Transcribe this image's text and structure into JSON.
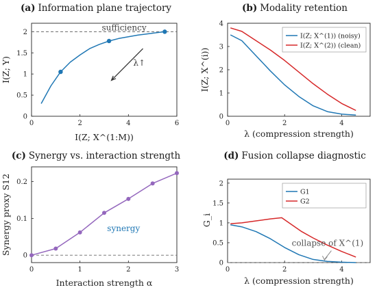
{
  "chart_data": [
    {
      "type": "line",
      "panel": "(a)",
      "title_label": "(a)",
      "title": "Information plane trajectory",
      "xlabel": "I(Z; X^(1:M))",
      "ylabel": "I(Z; Y)",
      "xlim": [
        0,
        6
      ],
      "ylim": [
        0,
        2.2
      ],
      "xticks": [
        "0",
        "2",
        "4",
        "6"
      ],
      "yticks": [
        "0",
        "0.5",
        "1",
        "1.5",
        "2"
      ],
      "grid": false,
      "series": [
        {
          "color": "#1f77b4",
          "x": [
            0.4,
            0.8,
            1.2,
            1.6,
            2.0,
            2.4,
            2.8,
            3.2,
            3.6,
            4.0,
            4.4,
            4.8,
            5.2,
            5.5
          ],
          "y": [
            0.3,
            0.72,
            1.05,
            1.28,
            1.45,
            1.6,
            1.7,
            1.78,
            1.84,
            1.88,
            1.92,
            1.95,
            1.98,
            2.0
          ],
          "markers_x": [
            1.2,
            3.2,
            5.5
          ],
          "markers_y": [
            1.05,
            1.78,
            2.0
          ]
        }
      ],
      "hline": {
        "y": 2.0,
        "style": "dashed",
        "label": "sufficiency"
      },
      "arrow": {
        "label": "λ↑",
        "from": [
          4.6,
          1.6
        ],
        "to": [
          3.3,
          0.85
        ]
      }
    },
    {
      "type": "line",
      "panel": "(b)",
      "title_label": "(b)",
      "title": "Modality retention",
      "xlabel": "λ (compression strength)",
      "ylabel": "I(Z; X^(i))",
      "xlim": [
        0,
        5
      ],
      "ylim": [
        0,
        4
      ],
      "xticks": [
        "0",
        "2",
        "4"
      ],
      "yticks": [
        "0",
        "1",
        "2",
        "3",
        "4"
      ],
      "legend_position": "top-right",
      "series": [
        {
          "name": "I(Z; X^(1)) (noisy)",
          "color": "#1f77b4",
          "x": [
            0.1,
            0.5,
            1.0,
            1.5,
            2.0,
            2.5,
            3.0,
            3.5,
            4.0,
            4.5
          ],
          "y": [
            3.5,
            3.25,
            2.6,
            1.95,
            1.35,
            0.85,
            0.45,
            0.2,
            0.09,
            0.05
          ]
        },
        {
          "name": "I(Z; X^(2)) (clean)",
          "color": "#d62728",
          "x": [
            0.1,
            0.5,
            1.0,
            1.5,
            2.0,
            2.5,
            3.0,
            3.5,
            4.0,
            4.5
          ],
          "y": [
            3.8,
            3.65,
            3.25,
            2.85,
            2.4,
            1.9,
            1.4,
            0.95,
            0.55,
            0.25
          ]
        }
      ]
    },
    {
      "type": "line",
      "panel": "(c)",
      "title_label": "(c)",
      "title": "Synergy vs. interaction strength",
      "xlabel": "Interaction strength α",
      "ylabel": "Synergy proxy S12",
      "xlim": [
        0,
        3
      ],
      "ylim": [
        -0.02,
        0.24
      ],
      "xticks": [
        "0",
        "1",
        "2",
        "3"
      ],
      "yticks": [
        "0",
        "0.1",
        "0.2"
      ],
      "series": [
        {
          "color": "#9467bd",
          "x": [
            0,
            0.5,
            1.0,
            1.5,
            2.0,
            2.5,
            3.0
          ],
          "y": [
            0.0,
            0.018,
            0.062,
            0.115,
            0.153,
            0.195,
            0.223
          ]
        }
      ],
      "hline": {
        "y": 0,
        "style": "dashed"
      },
      "annotation": "synergy"
    },
    {
      "type": "line",
      "panel": "(d)",
      "title_label": "(d)",
      "title": "Fusion collapse diagnostic",
      "xlabel": "λ (compression strength)",
      "ylabel": "G_i",
      "xlim": [
        0,
        5
      ],
      "ylim": [
        0,
        2.1
      ],
      "xticks": [
        "0",
        "2",
        "4"
      ],
      "yticks": [
        "0",
        "0.5",
        "1",
        "1.5",
        "2"
      ],
      "legend_position": "top-right",
      "series": [
        {
          "name": "G1",
          "color": "#1f77b4",
          "x": [
            0.1,
            0.5,
            1.0,
            1.5,
            2.0,
            2.5,
            3.0,
            3.5,
            4.0,
            4.5
          ],
          "y": [
            0.95,
            0.9,
            0.78,
            0.6,
            0.38,
            0.2,
            0.08,
            0.03,
            0.01,
            0.0
          ]
        },
        {
          "name": "G2",
          "color": "#d62728",
          "x": [
            0.1,
            0.5,
            1.0,
            1.5,
            1.9,
            2.2,
            2.6,
            3.0,
            3.5,
            4.0,
            4.5
          ],
          "y": [
            0.98,
            1.0,
            1.05,
            1.1,
            1.13,
            0.98,
            0.78,
            0.62,
            0.44,
            0.28,
            0.14
          ]
        }
      ],
      "hline": {
        "y": 0,
        "style": "dashed"
      },
      "annotation": "collapse of X^(1)",
      "annotation_target": [
        3.4,
        0.03
      ]
    }
  ]
}
